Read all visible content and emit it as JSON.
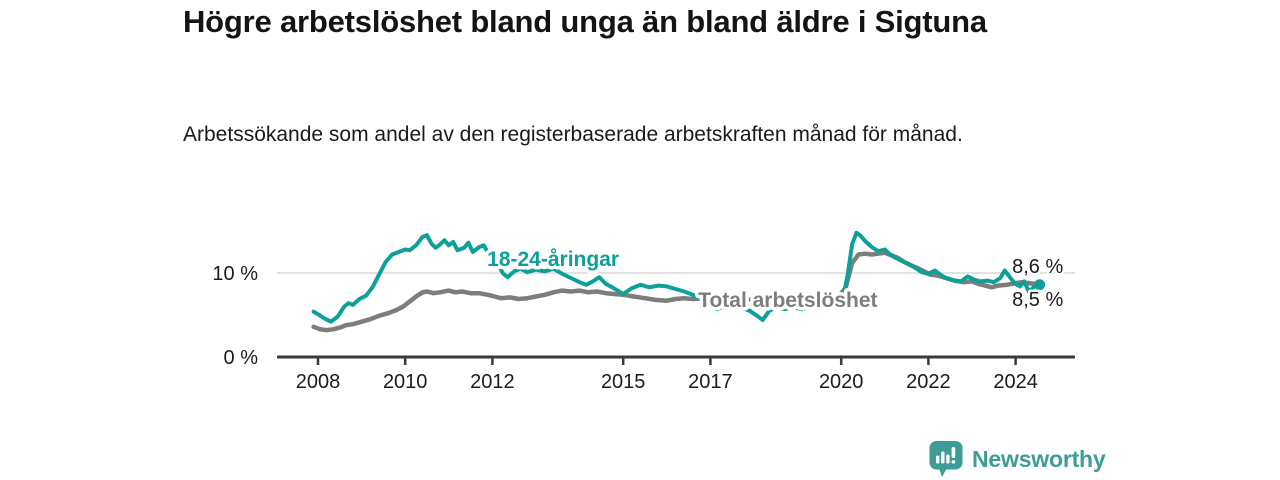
{
  "header": {
    "title": "Högre arbetslöshet bland unga än bland äldre i Sigtuna",
    "subtitle": "Arbetssökande som andel av den registerbaserade arbetskraften månad för månad."
  },
  "footer": {
    "brand": "Newsworthy",
    "logo_icon": "bar-chart-speech-bubble-icon",
    "brand_color": "#3e9c96"
  },
  "colors": {
    "background": "#ffffff",
    "youth_line": "#0da099",
    "total_line": "#7d7d7d",
    "axis": "#3a3a3a",
    "grid": "#d9d9d9",
    "text": "#1c1c1c"
  },
  "chart_data": {
    "type": "line",
    "unit": "%",
    "title": "Högre arbetslöshet bland unga än bland äldre i Sigtuna",
    "xlabel": "",
    "ylabel": "",
    "x_axis": {
      "range": [
        2007.06,
        2025.38
      ],
      "ticks": [
        2008,
        2010,
        2012,
        2015,
        2017,
        2020,
        2022,
        2024
      ],
      "tick_labels": [
        "2008",
        "2010",
        "2012",
        "2015",
        "2017",
        "2020",
        "2022",
        "2024"
      ]
    },
    "y_axis": {
      "range": [
        0,
        17.7
      ],
      "ticks": [
        {
          "v": 0,
          "label": "0 %"
        },
        {
          "v": 10,
          "label": "10 %"
        }
      ],
      "gridlines": [
        10
      ]
    },
    "series": [
      {
        "name": "Total arbetslöshet",
        "color": "#7d7d7d",
        "stroke_width": 4.5,
        "end_marker": false,
        "end_value_label": "8,5 %",
        "points": [
          [
            2007.9,
            3.6
          ],
          [
            2008.05,
            3.3
          ],
          [
            2008.2,
            3.2
          ],
          [
            2008.35,
            3.3
          ],
          [
            2008.5,
            3.5
          ],
          [
            2008.65,
            3.8
          ],
          [
            2008.8,
            3.9
          ],
          [
            2009.0,
            4.2
          ],
          [
            2009.2,
            4.5
          ],
          [
            2009.4,
            4.9
          ],
          [
            2009.6,
            5.2
          ],
          [
            2009.8,
            5.6
          ],
          [
            2009.95,
            6.0
          ],
          [
            2010.1,
            6.6
          ],
          [
            2010.25,
            7.2
          ],
          [
            2010.4,
            7.7
          ],
          [
            2010.5,
            7.8
          ],
          [
            2010.65,
            7.6
          ],
          [
            2010.8,
            7.7
          ],
          [
            2011.0,
            7.9
          ],
          [
            2011.15,
            7.7
          ],
          [
            2011.3,
            7.8
          ],
          [
            2011.5,
            7.6
          ],
          [
            2011.7,
            7.6
          ],
          [
            2011.9,
            7.4
          ],
          [
            2012.05,
            7.2
          ],
          [
            2012.2,
            7.0
          ],
          [
            2012.4,
            7.1
          ],
          [
            2012.6,
            6.9
          ],
          [
            2012.8,
            7.0
          ],
          [
            2013.0,
            7.2
          ],
          [
            2013.2,
            7.4
          ],
          [
            2013.4,
            7.7
          ],
          [
            2013.6,
            7.9
          ],
          [
            2013.8,
            7.8
          ],
          [
            2014.0,
            7.9
          ],
          [
            2014.2,
            7.7
          ],
          [
            2014.4,
            7.8
          ],
          [
            2014.6,
            7.6
          ],
          [
            2014.8,
            7.5
          ],
          [
            2015.0,
            7.4
          ],
          [
            2015.25,
            7.2
          ],
          [
            2015.5,
            7.0
          ],
          [
            2015.75,
            6.8
          ],
          [
            2016.0,
            6.7
          ],
          [
            2016.2,
            6.9
          ],
          [
            2016.4,
            7.0
          ],
          [
            2016.6,
            6.9
          ],
          [
            2016.8,
            7.0
          ],
          [
            2017.0,
            6.9
          ],
          [
            2017.25,
            7.0
          ],
          [
            2017.5,
            7.0
          ],
          [
            2017.75,
            6.9
          ],
          [
            2018.0,
            6.8
          ],
          [
            2018.25,
            6.7
          ],
          [
            2018.5,
            6.7
          ],
          [
            2018.75,
            6.8
          ],
          [
            2019.0,
            6.8
          ],
          [
            2019.25,
            6.9
          ],
          [
            2019.5,
            7.0
          ],
          [
            2019.75,
            7.1
          ],
          [
            2019.95,
            7.3
          ],
          [
            2020.1,
            8.2
          ],
          [
            2020.25,
            11.2
          ],
          [
            2020.4,
            12.2
          ],
          [
            2020.55,
            12.3
          ],
          [
            2020.7,
            12.2
          ],
          [
            2020.85,
            12.3
          ],
          [
            2021.0,
            12.4
          ],
          [
            2021.15,
            12.1
          ],
          [
            2021.3,
            11.8
          ],
          [
            2021.45,
            11.3
          ],
          [
            2021.6,
            10.9
          ],
          [
            2021.75,
            10.6
          ],
          [
            2021.9,
            10.2
          ],
          [
            2022.05,
            9.8
          ],
          [
            2022.2,
            9.7
          ],
          [
            2022.4,
            9.4
          ],
          [
            2022.6,
            9.1
          ],
          [
            2022.8,
            8.9
          ],
          [
            2023.0,
            9.0
          ],
          [
            2023.15,
            8.7
          ],
          [
            2023.3,
            8.5
          ],
          [
            2023.45,
            8.3
          ],
          [
            2023.6,
            8.5
          ],
          [
            2023.8,
            8.6
          ],
          [
            2024.0,
            8.8
          ],
          [
            2024.15,
            8.9
          ],
          [
            2024.3,
            8.8
          ],
          [
            2024.45,
            8.7
          ],
          [
            2024.55,
            8.5
          ]
        ]
      },
      {
        "name": "18-24-åringar",
        "color": "#0da099",
        "stroke_width": 4,
        "end_marker": true,
        "end_value_label": "8,6 %",
        "points": [
          [
            2007.9,
            5.4
          ],
          [
            2008.0,
            5.1
          ],
          [
            2008.15,
            4.6
          ],
          [
            2008.3,
            4.2
          ],
          [
            2008.45,
            4.8
          ],
          [
            2008.6,
            6.0
          ],
          [
            2008.7,
            6.4
          ],
          [
            2008.8,
            6.2
          ],
          [
            2008.95,
            6.9
          ],
          [
            2009.1,
            7.3
          ],
          [
            2009.25,
            8.3
          ],
          [
            2009.4,
            9.8
          ],
          [
            2009.55,
            11.3
          ],
          [
            2009.7,
            12.2
          ],
          [
            2009.85,
            12.5
          ],
          [
            2010.0,
            12.8
          ],
          [
            2010.1,
            12.7
          ],
          [
            2010.25,
            13.3
          ],
          [
            2010.4,
            14.3
          ],
          [
            2010.5,
            14.5
          ],
          [
            2010.6,
            13.5
          ],
          [
            2010.7,
            13.0
          ],
          [
            2010.8,
            13.4
          ],
          [
            2010.9,
            13.9
          ],
          [
            2011.0,
            13.3
          ],
          [
            2011.1,
            13.7
          ],
          [
            2011.2,
            12.7
          ],
          [
            2011.35,
            13.0
          ],
          [
            2011.45,
            13.6
          ],
          [
            2011.55,
            12.5
          ],
          [
            2011.7,
            13.1
          ],
          [
            2011.8,
            13.3
          ],
          [
            2011.9,
            12.4
          ],
          [
            2012.0,
            11.9
          ],
          [
            2012.1,
            11.2
          ],
          [
            2012.25,
            9.9
          ],
          [
            2012.35,
            9.5
          ],
          [
            2012.5,
            10.2
          ],
          [
            2012.65,
            10.5
          ],
          [
            2012.8,
            10.1
          ],
          [
            2013.0,
            10.4
          ],
          [
            2013.2,
            10.2
          ],
          [
            2013.4,
            10.5
          ],
          [
            2013.6,
            9.9
          ],
          [
            2013.8,
            9.4
          ],
          [
            2014.0,
            8.9
          ],
          [
            2014.15,
            8.6
          ],
          [
            2014.3,
            9.0
          ],
          [
            2014.45,
            9.5
          ],
          [
            2014.6,
            8.7
          ],
          [
            2014.75,
            8.3
          ],
          [
            2015.0,
            7.5
          ],
          [
            2015.2,
            8.2
          ],
          [
            2015.4,
            8.6
          ],
          [
            2015.6,
            8.3
          ],
          [
            2015.8,
            8.5
          ],
          [
            2016.0,
            8.4
          ],
          [
            2016.2,
            8.1
          ],
          [
            2016.4,
            7.8
          ],
          [
            2016.6,
            7.4
          ],
          [
            2016.8,
            6.8
          ],
          [
            2017.0,
            6.4
          ],
          [
            2017.15,
            5.7
          ],
          [
            2017.3,
            6.0
          ],
          [
            2017.5,
            6.2
          ],
          [
            2017.7,
            5.9
          ],
          [
            2017.9,
            5.5
          ],
          [
            2018.1,
            4.8
          ],
          [
            2018.2,
            4.4
          ],
          [
            2018.35,
            5.5
          ],
          [
            2018.5,
            5.9
          ],
          [
            2018.7,
            5.7
          ],
          [
            2018.9,
            5.9
          ],
          [
            2019.1,
            5.7
          ],
          [
            2019.3,
            6.0
          ],
          [
            2019.5,
            6.1
          ],
          [
            2019.7,
            6.3
          ],
          [
            2019.9,
            6.6
          ],
          [
            2020.05,
            7.2
          ],
          [
            2020.15,
            9.8
          ],
          [
            2020.25,
            13.4
          ],
          [
            2020.35,
            14.8
          ],
          [
            2020.45,
            14.4
          ],
          [
            2020.55,
            13.8
          ],
          [
            2020.7,
            13.1
          ],
          [
            2020.85,
            12.6
          ],
          [
            2021.0,
            12.8
          ],
          [
            2021.1,
            12.3
          ],
          [
            2021.25,
            11.8
          ],
          [
            2021.4,
            11.4
          ],
          [
            2021.55,
            11.1
          ],
          [
            2021.7,
            10.6
          ],
          [
            2021.85,
            10.1
          ],
          [
            2022.0,
            9.9
          ],
          [
            2022.15,
            10.3
          ],
          [
            2022.3,
            9.7
          ],
          [
            2022.45,
            9.3
          ],
          [
            2022.6,
            9.1
          ],
          [
            2022.75,
            9.0
          ],
          [
            2022.9,
            9.6
          ],
          [
            2023.05,
            9.2
          ],
          [
            2023.2,
            9.0
          ],
          [
            2023.35,
            9.1
          ],
          [
            2023.5,
            8.9
          ],
          [
            2023.65,
            9.4
          ],
          [
            2023.75,
            10.3
          ],
          [
            2023.9,
            9.3
          ],
          [
            2024.0,
            8.7
          ],
          [
            2024.1,
            8.4
          ],
          [
            2024.2,
            9.0
          ],
          [
            2024.3,
            7.8
          ],
          [
            2024.4,
            8.2
          ],
          [
            2024.5,
            8.8
          ],
          [
            2024.55,
            8.6
          ]
        ]
      }
    ],
    "series_labels": [
      {
        "text": "18-24-åringar",
        "color": "#0da099",
        "x": 2011.88,
        "y": 10.85
      },
      {
        "text": "Total arbetslöshet",
        "color": "#7d7d7d",
        "x": 2016.72,
        "y": 5.95
      }
    ],
    "end_labels": [
      {
        "text": "8,6 %",
        "x": 2023.92,
        "y": 10.0
      },
      {
        "text": "8,5 %",
        "x": 2023.92,
        "y": 6.05
      }
    ],
    "legend_position": "inline-labels",
    "grid": "horizontal-only"
  }
}
